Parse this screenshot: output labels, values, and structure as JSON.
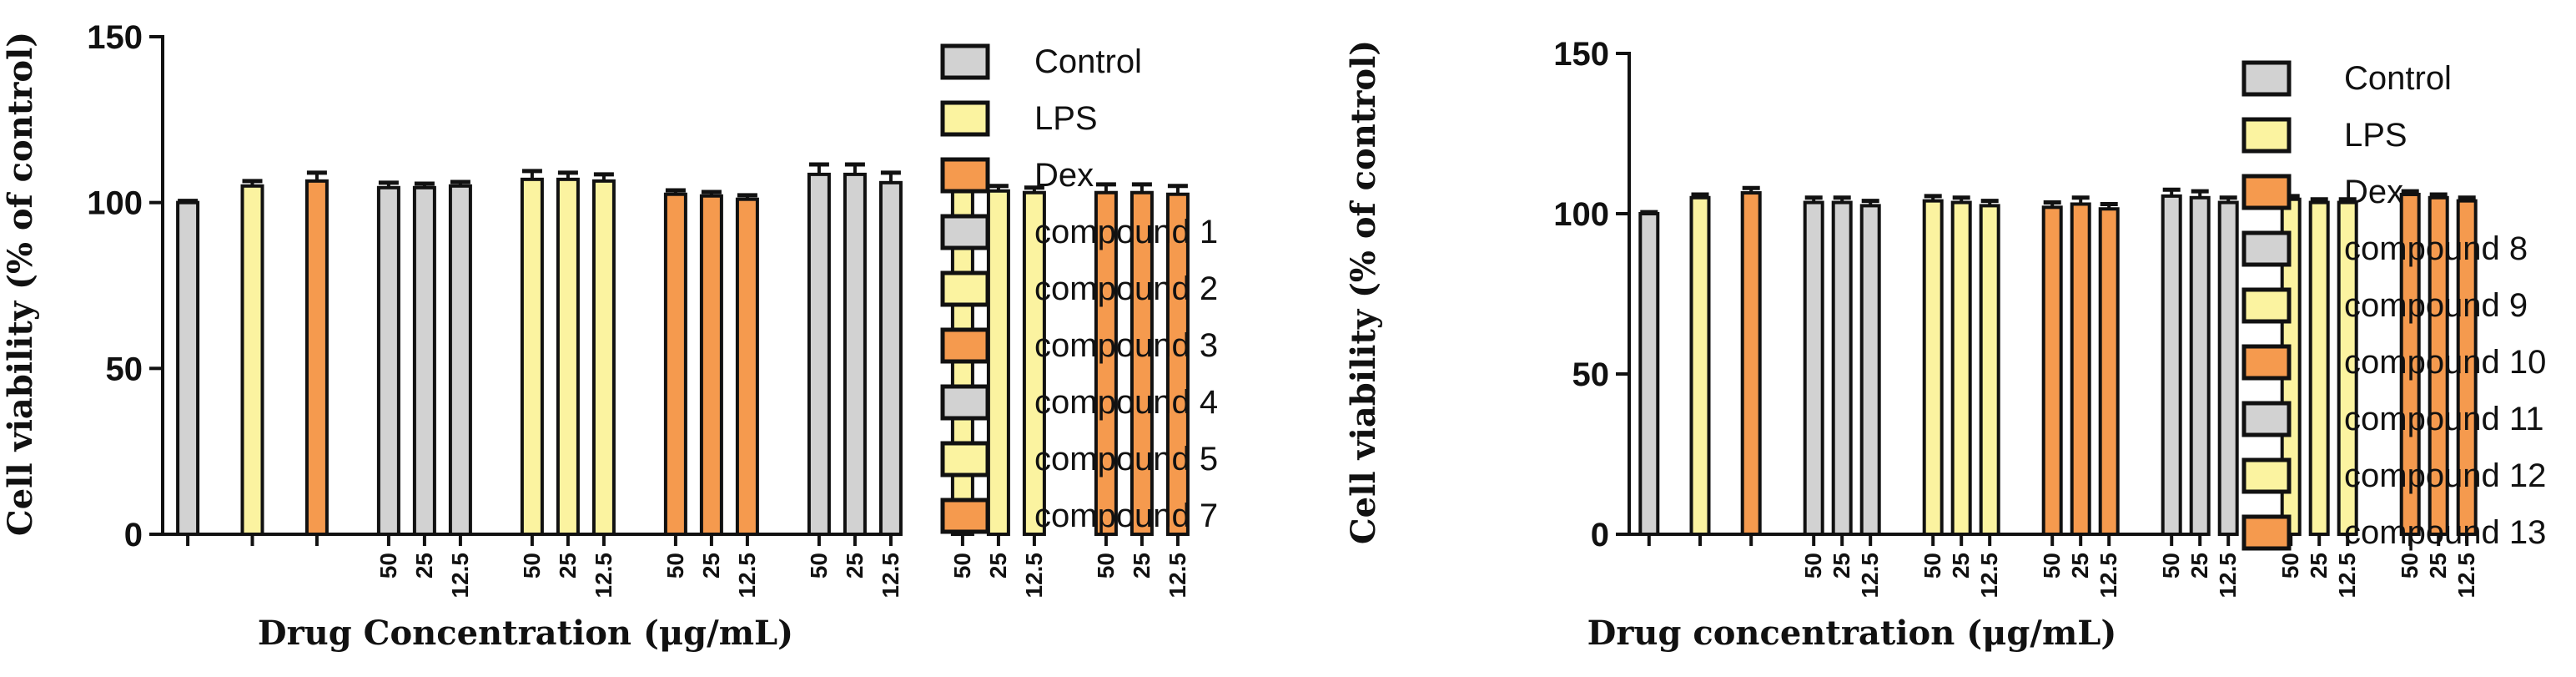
{
  "colors": {
    "grey": "#d2d2d2",
    "yellow": "#fbf3a0",
    "orange": "#f59a4e",
    "stroke": "#111111"
  },
  "chart_data": [
    {
      "type": "bar",
      "title": "",
      "ylabel": "Cell viability (% of control)",
      "xlabel": "Drug Concentration (μg/mL)",
      "ylim": [
        0,
        150
      ],
      "yticks": [
        "0",
        "50",
        "100",
        "150"
      ],
      "concentration_labels": [
        "50",
        "25",
        "12.5"
      ],
      "groups": [
        {
          "name": "Control",
          "color": "grey",
          "values": [
            100
          ],
          "errors": [
            0.5
          ],
          "concentrations": []
        },
        {
          "name": "LPS",
          "color": "yellow",
          "values": [
            105
          ],
          "errors": [
            1.5
          ],
          "concentrations": []
        },
        {
          "name": "Dex",
          "color": "orange",
          "values": [
            106.5
          ],
          "errors": [
            2.5
          ],
          "concentrations": []
        },
        {
          "name": "compound 1",
          "color": "grey",
          "values": [
            104.5,
            104.5,
            105
          ],
          "errors": [
            1.5,
            1.2,
            1.2
          ],
          "concentrations": [
            "50",
            "25",
            "12.5"
          ]
        },
        {
          "name": "compound 2",
          "color": "yellow",
          "values": [
            107,
            107,
            106.5
          ],
          "errors": [
            2.5,
            2.0,
            2.0
          ],
          "concentrations": [
            "50",
            "25",
            "12.5"
          ]
        },
        {
          "name": "compound 3",
          "color": "orange",
          "values": [
            102.5,
            102,
            101
          ],
          "errors": [
            1.2,
            1.2,
            1.2
          ],
          "concentrations": [
            "50",
            "25",
            "12.5"
          ]
        },
        {
          "name": "compound 4",
          "color": "grey",
          "values": [
            108.5,
            108.5,
            106
          ],
          "errors": [
            3.0,
            3.0,
            3.0
          ],
          "concentrations": [
            "50",
            "25",
            "12.5"
          ]
        },
        {
          "name": "compound 5",
          "color": "yellow",
          "values": [
            103.5,
            103.5,
            103
          ],
          "errors": [
            1.5,
            1.5,
            1.5
          ],
          "concentrations": [
            "50",
            "25",
            "12.5"
          ]
        },
        {
          "name": "compound 7",
          "color": "orange",
          "values": [
            103,
            103,
            102.5
          ],
          "errors": [
            2.5,
            2.5,
            2.5
          ],
          "concentrations": [
            "50",
            "25",
            "12.5"
          ]
        }
      ],
      "legend": [
        "Control",
        "LPS",
        "Dex",
        "compound 1",
        "compound 2",
        "compound 3",
        "compound 4",
        "compound 5",
        "compound 7"
      ]
    },
    {
      "type": "bar",
      "title": "",
      "ylabel": "Cell viability (% of control)",
      "xlabel": "Drug concentration (μg/mL)",
      "ylim": [
        0,
        150
      ],
      "yticks": [
        "0",
        "50",
        "100",
        "150"
      ],
      "concentration_labels": [
        "50",
        "25",
        "12.5"
      ],
      "groups": [
        {
          "name": "Control",
          "color": "grey",
          "values": [
            100
          ],
          "errors": [
            0.5
          ],
          "concentrations": []
        },
        {
          "name": "LPS",
          "color": "yellow",
          "values": [
            105
          ],
          "errors": [
            1.0
          ],
          "concentrations": []
        },
        {
          "name": "Dex",
          "color": "orange",
          "values": [
            106.5
          ],
          "errors": [
            1.5
          ],
          "concentrations": []
        },
        {
          "name": "compound 8",
          "color": "grey",
          "values": [
            103.5,
            103.5,
            102.5
          ],
          "errors": [
            1.5,
            1.5,
            1.5
          ],
          "concentrations": [
            "50",
            "25",
            "12.5"
          ]
        },
        {
          "name": "compound 9",
          "color": "yellow",
          "values": [
            104,
            103.5,
            102.5
          ],
          "errors": [
            1.5,
            1.5,
            1.5
          ],
          "concentrations": [
            "50",
            "25",
            "12.5"
          ]
        },
        {
          "name": "compound 10",
          "color": "orange",
          "values": [
            102,
            103,
            101.5
          ],
          "errors": [
            1.5,
            2.0,
            1.5
          ],
          "concentrations": [
            "50",
            "25",
            "12.5"
          ]
        },
        {
          "name": "compound 11",
          "color": "grey",
          "values": [
            105.5,
            105,
            103.5
          ],
          "errors": [
            2.0,
            2.0,
            1.5
          ],
          "concentrations": [
            "50",
            "25",
            "12.5"
          ]
        },
        {
          "name": "compound 12",
          "color": "yellow",
          "values": [
            104.5,
            103.5,
            103.5
          ],
          "errors": [
            1.0,
            1.0,
            1.0
          ],
          "concentrations": [
            "50",
            "25",
            "12.5"
          ]
        },
        {
          "name": "compound 13",
          "color": "orange",
          "values": [
            106,
            105,
            104
          ],
          "errors": [
            1.0,
            1.0,
            1.0
          ],
          "concentrations": [
            "50",
            "25",
            "12.5"
          ]
        }
      ],
      "legend": [
        "Control",
        "LPS",
        "Dex",
        "compound 8",
        "compound 9",
        "compound 10",
        "compound 11",
        "compound 12",
        "compound 13"
      ]
    }
  ]
}
